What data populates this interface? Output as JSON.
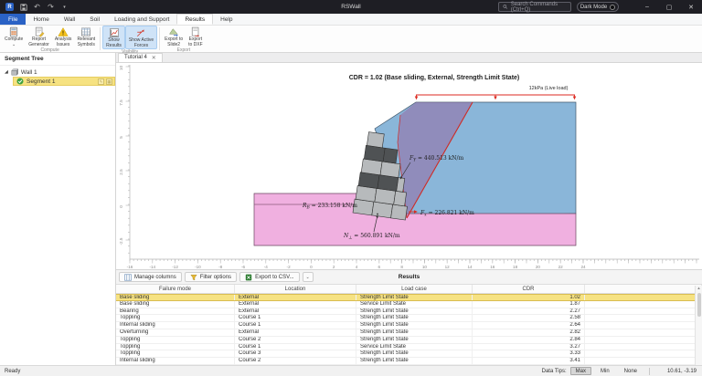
{
  "titlebar": {
    "app_title": "RSWall",
    "search_placeholder": "Search Commands (Ctrl+Q)",
    "dark_mode_label": "Dark Mode",
    "window_controls": {
      "minimize": "–",
      "maximize": "▢",
      "close": "✕"
    }
  },
  "ribbon": {
    "tabs": [
      {
        "label": "File",
        "accent": true
      },
      {
        "label": "Home"
      },
      {
        "label": "Wall"
      },
      {
        "label": "Soil"
      },
      {
        "label": "Loading and Support"
      },
      {
        "label": "Results",
        "active": true
      },
      {
        "label": "Help"
      }
    ],
    "groups": [
      {
        "label": "Compute",
        "buttons": [
          {
            "line1": "Compute",
            "line2": ""
          },
          {
            "line1": "Report",
            "line2": "Generator"
          },
          {
            "line1": "Analysis",
            "line2": "Issues"
          },
          {
            "line1": "Relevant",
            "line2": "Symbols"
          }
        ]
      },
      {
        "label": "Visibility",
        "buttons": [
          {
            "line1": "Show",
            "line2": "Results",
            "active": true
          },
          {
            "line1": "Show Active",
            "line2": "Forces",
            "active": true
          }
        ]
      },
      {
        "label": "Export",
        "buttons": [
          {
            "line1": "Export to",
            "line2": "Slide2"
          },
          {
            "line1": "Export",
            "line2": "to DXF"
          }
        ]
      }
    ]
  },
  "sidebar": {
    "title": "Segment Tree",
    "items": [
      {
        "label": "Wall 1"
      },
      {
        "label": "Segment 1",
        "selected": true
      }
    ]
  },
  "document_tab": {
    "label": "Tutorial 4",
    "close": "✕"
  },
  "diagram": {
    "title": "CDR = 1.02 (Base sliding, External, Strength Limit State)",
    "load_label": "12kPa (Live load)",
    "forces": [
      {
        "sym": "F",
        "sub": "Y",
        "val": " = 440.513 kN/m"
      },
      {
        "sym": "R",
        "sub": "B",
        "val": " = 233.158 kN/m"
      },
      {
        "sym": "F",
        "sub": "x",
        "val": " = 226.821 kN/m"
      },
      {
        "sym": "N",
        "sub": "⊥",
        "val": " = 560.891 kN/m"
      }
    ],
    "x_ticks": [
      -16,
      -14,
      -12,
      -10,
      -8,
      -6,
      -4,
      -2,
      0,
      2,
      4,
      6,
      8,
      10,
      12,
      14,
      16,
      18,
      20,
      22,
      24
    ],
    "y_ticks": [
      10,
      7.5,
      5,
      2.5,
      0,
      -2.5
    ],
    "colors": {
      "retained_soil": "#8ab6d9",
      "foundation_soil": "#f0b0e0",
      "failure_wedge": "#96629e",
      "block_light": "#b7babc",
      "block_dark": "#4f5254",
      "load_red": "#dc2a20"
    }
  },
  "table": {
    "toolbar": [
      "Manage columns",
      "Filter options",
      "Export to CSV..."
    ],
    "title": "Results",
    "columns": [
      "Failure mode",
      "Location",
      "Load case",
      "CDR"
    ],
    "selected_index": 0,
    "rows": [
      [
        "Base sliding",
        "External",
        "Strength Limit State",
        "1.02"
      ],
      [
        "Base sliding",
        "External",
        "Service Limit State",
        "1.87"
      ],
      [
        "Bearing",
        "External",
        "Strength Limit State",
        "2.27"
      ],
      [
        "Toppling",
        "Course 1",
        "Strength Limit State",
        "2.58"
      ],
      [
        "Internal sliding",
        "Course 1",
        "Strength Limit State",
        "2.64"
      ],
      [
        "Overturning",
        "External",
        "Strength Limit State",
        "2.82"
      ],
      [
        "Toppling",
        "Course 2",
        "Strength Limit State",
        "2.84"
      ],
      [
        "Toppling",
        "Course 1",
        "Service Limit State",
        "3.27"
      ],
      [
        "Toppling",
        "Course 3",
        "Strength Limit State",
        "3.33"
      ],
      [
        "Internal sliding",
        "Course 2",
        "Strength Limit State",
        "3.41"
      ]
    ]
  },
  "statusbar": {
    "ready": "Ready",
    "data_tips_label": "Data Tips:",
    "options": [
      "Max",
      "Min",
      "None"
    ],
    "active_option": "Max",
    "coords": "10.61, -3.19"
  }
}
